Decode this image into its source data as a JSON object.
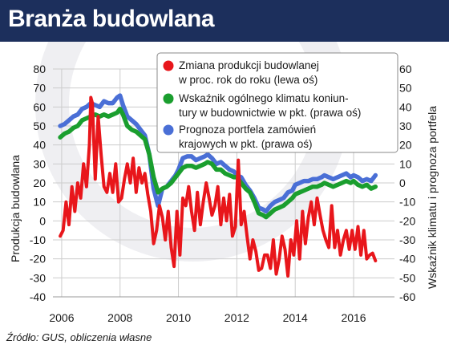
{
  "header": {
    "title": "Branża budowlana"
  },
  "source": "Źródło: GUS, obliczenia własne",
  "colors": {
    "header_bg": "#1c2f5c",
    "production": "#e8161b",
    "climate": "#1a9e2e",
    "portfolio": "#4a6fd6",
    "grid": "#cccccc"
  },
  "chart_data": {
    "type": "line",
    "title": "Branża budowlana",
    "ylabel_left": "Produkcja budowlana",
    "ylabel_right": "Wskaźnik klimatu i prognoza portfela",
    "ylim_left": [
      -40,
      80
    ],
    "ylim_right": [
      -60,
      60
    ],
    "x_ticks": [
      "2006",
      "2008",
      "2010",
      "2012",
      "2014",
      "2016"
    ],
    "y_ticks_left": [
      "80",
      "70",
      "60",
      "50",
      "40",
      "30",
      "20",
      "10",
      "0",
      "-10",
      "-20",
      "-30",
      "-40"
    ],
    "y_ticks_right": [
      "60",
      "50",
      "40",
      "30",
      "20",
      "10",
      "0",
      "-10",
      "-20",
      "-30",
      "-40",
      "-50",
      "-60"
    ],
    "grid": true,
    "legend_position": "top-right",
    "series": [
      {
        "name": "Zmiana produkcji budowlanej w proc. rok do roku (lewa oś)",
        "name_lines": [
          "Zmiana produkcji budowlanej",
          "w proc. rok do roku (lewa oś)"
        ],
        "axis": "left",
        "x": [
          2005.95,
          2006.05,
          2006.15,
          2006.25,
          2006.35,
          2006.45,
          2006.55,
          2006.65,
          2006.75,
          2006.85,
          2006.95,
          2007.0,
          2007.05,
          2007.15,
          2007.25,
          2007.35,
          2007.45,
          2007.55,
          2007.65,
          2007.75,
          2007.85,
          2007.95,
          2008.05,
          2008.15,
          2008.25,
          2008.35,
          2008.45,
          2008.55,
          2008.65,
          2008.75,
          2008.85,
          2008.95,
          2009.05,
          2009.15,
          2009.25,
          2009.35,
          2009.45,
          2009.55,
          2009.65,
          2009.75,
          2009.85,
          2009.95,
          2010.05,
          2010.15,
          2010.25,
          2010.35,
          2010.45,
          2010.55,
          2010.65,
          2010.75,
          2010.85,
          2010.95,
          2011.05,
          2011.15,
          2011.25,
          2011.35,
          2011.45,
          2011.55,
          2011.65,
          2011.75,
          2011.85,
          2011.95,
          2012.05,
          2012.15,
          2012.25,
          2012.35,
          2012.45,
          2012.55,
          2012.65,
          2012.75,
          2012.85,
          2012.95,
          2013.05,
          2013.15,
          2013.25,
          2013.35,
          2013.45,
          2013.55,
          2013.65,
          2013.75,
          2013.85,
          2013.95,
          2014.05,
          2014.15,
          2014.25,
          2014.35,
          2014.45,
          2014.55,
          2014.65,
          2014.75,
          2014.85,
          2014.95,
          2015.05,
          2015.15,
          2015.25,
          2015.35,
          2015.45,
          2015.55,
          2015.65,
          2015.75,
          2015.85,
          2015.95,
          2016.05,
          2016.15,
          2016.25,
          2016.35,
          2016.45,
          2016.55,
          2016.65,
          2016.75
        ],
        "values": [
          -8,
          -5,
          10,
          -2,
          18,
          5,
          20,
          12,
          30,
          18,
          40,
          65,
          62,
          22,
          55,
          35,
          18,
          15,
          25,
          15,
          30,
          10,
          12,
          22,
          30,
          20,
          33,
          15,
          28,
          20,
          25,
          14,
          5,
          -12,
          -5,
          8,
          2,
          -10,
          5,
          -14,
          -24,
          5,
          -18,
          12,
          8,
          18,
          5,
          -5,
          15,
          -2,
          10,
          20,
          12,
          3,
          8,
          18,
          -2,
          12,
          0,
          14,
          -8,
          -3,
          32,
          -2,
          5,
          -8,
          -20,
          -10,
          -16,
          -26,
          -25,
          -18,
          -18,
          -25,
          -10,
          -28,
          -20,
          -8,
          -15,
          -29,
          -10,
          -18,
          0,
          -20,
          5,
          -12,
          2,
          10,
          -2,
          12,
          3,
          -5,
          -10,
          -14,
          8,
          -14,
          -5,
          -18,
          -10,
          -5,
          -15,
          -5,
          -15,
          -3,
          -18,
          -5,
          -20,
          -18,
          -17,
          -21
        ]
      },
      {
        "name": "Wskaźnik ogólnego klimatu koniunktury w budownictwie w pkt. (prawa oś)",
        "name_lines": [
          "Wskaźnik ogólnego klimatu koniun-",
          "tury w budownictwie w pkt. (prawa oś)"
        ],
        "axis": "right",
        "x": [
          2005.95,
          2006.1,
          2006.25,
          2006.4,
          2006.55,
          2006.7,
          2006.85,
          2007.0,
          2007.15,
          2007.3,
          2007.45,
          2007.6,
          2007.75,
          2007.9,
          2008.0,
          2008.1,
          2008.25,
          2008.4,
          2008.55,
          2008.7,
          2008.85,
          2009.0,
          2009.15,
          2009.3,
          2009.45,
          2009.6,
          2009.75,
          2009.9,
          2010.0,
          2010.15,
          2010.3,
          2010.45,
          2010.6,
          2010.75,
          2010.9,
          2011.0,
          2011.15,
          2011.3,
          2011.45,
          2011.6,
          2011.75,
          2011.9,
          2012.0,
          2012.15,
          2012.3,
          2012.45,
          2012.6,
          2012.75,
          2012.9,
          2013.0,
          2013.15,
          2013.3,
          2013.45,
          2013.6,
          2013.75,
          2013.9,
          2014.0,
          2014.15,
          2014.3,
          2014.45,
          2014.6,
          2014.75,
          2014.9,
          2015.0,
          2015.15,
          2015.3,
          2015.45,
          2015.6,
          2015.75,
          2015.9,
          2016.0,
          2016.15,
          2016.3,
          2016.45,
          2016.6,
          2016.75
        ],
        "values": [
          24,
          26,
          27,
          29,
          30,
          33,
          34,
          35,
          36,
          35,
          36,
          35,
          36,
          37,
          39,
          36,
          30,
          28,
          27,
          25,
          23,
          15,
          3,
          -5,
          -3,
          -2,
          0,
          3,
          5,
          8,
          9,
          9,
          8,
          9,
          10,
          11,
          10,
          7,
          7,
          5,
          4,
          3,
          3,
          0,
          -3,
          -5,
          -10,
          -16,
          -17,
          -18,
          -16,
          -14,
          -13,
          -12,
          -10,
          -8,
          -6,
          -5,
          -4,
          -3,
          -2,
          -2,
          -1,
          0,
          -1,
          -2,
          -1,
          0,
          1,
          0,
          1,
          -1,
          -2,
          -1,
          -3,
          -2
        ]
      },
      {
        "name": "Prognoza portfela zamówień krajowych w pkt. (prawa oś)",
        "name_lines": [
          "Prognoza portfela zamówień",
          "krajowych w pkt. (prawa oś)"
        ],
        "axis": "right",
        "x": [
          2005.95,
          2006.1,
          2006.25,
          2006.4,
          2006.55,
          2006.7,
          2006.85,
          2007.0,
          2007.15,
          2007.3,
          2007.45,
          2007.6,
          2007.75,
          2007.9,
          2008.0,
          2008.1,
          2008.25,
          2008.4,
          2008.55,
          2008.7,
          2008.85,
          2009.0,
          2009.15,
          2009.3,
          2009.45,
          2009.6,
          2009.75,
          2009.9,
          2010.0,
          2010.15,
          2010.3,
          2010.45,
          2010.6,
          2010.75,
          2010.9,
          2011.0,
          2011.15,
          2011.3,
          2011.45,
          2011.6,
          2011.75,
          2011.9,
          2012.0,
          2012.15,
          2012.3,
          2012.45,
          2012.6,
          2012.75,
          2012.9,
          2013.0,
          2013.15,
          2013.3,
          2013.45,
          2013.6,
          2013.75,
          2013.9,
          2014.0,
          2014.15,
          2014.3,
          2014.45,
          2014.6,
          2014.75,
          2014.9,
          2015.0,
          2015.15,
          2015.3,
          2015.45,
          2015.6,
          2015.75,
          2015.9,
          2016.0,
          2016.15,
          2016.3,
          2016.45,
          2016.6,
          2016.75
        ],
        "values": [
          30,
          31,
          33,
          35,
          36,
          39,
          40,
          42,
          41,
          40,
          43,
          42,
          42,
          45,
          46,
          41,
          35,
          33,
          31,
          28,
          25,
          15,
          -3,
          -12,
          -3,
          -2,
          1,
          4,
          7,
          13,
          14,
          14,
          12,
          13,
          14,
          15,
          13,
          10,
          11,
          9,
          7,
          6,
          4,
          3,
          -1,
          -4,
          -8,
          -13,
          -14,
          -15,
          -12,
          -10,
          -9,
          -8,
          -5,
          -4,
          -1,
          0,
          1,
          1,
          2,
          2,
          3,
          4,
          3,
          2,
          3,
          4,
          5,
          3,
          4,
          3,
          1,
          2,
          1,
          4
        ]
      }
    ]
  }
}
